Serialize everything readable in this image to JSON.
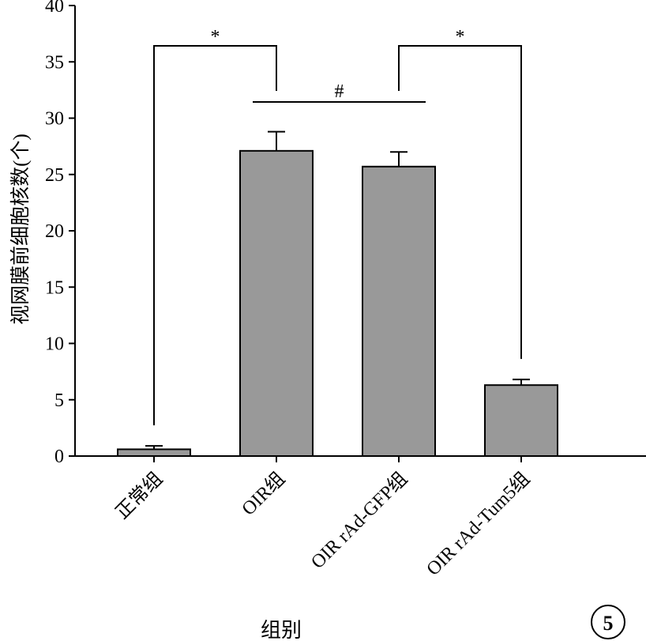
{
  "chart_data": {
    "type": "bar",
    "categories": [
      "正常组",
      "OIR组",
      "OIR rAd-GFP组",
      "OIR rAd-Tum5组"
    ],
    "values": [
      0.6,
      27.1,
      25.7,
      6.3
    ],
    "errors": [
      0.3,
      1.7,
      1.3,
      0.5
    ],
    "ylabel": "视网膜前细胞核数(个)",
    "xlabel": "组别",
    "ylim": [
      0,
      40
    ],
    "yticks": [
      "0",
      "5",
      "10",
      "15",
      "20",
      "25",
      "30",
      "35",
      "40"
    ],
    "significance": [
      {
        "from": 0,
        "to": 1,
        "label": "*"
      },
      {
        "from": 1,
        "to": 2,
        "label": "#"
      },
      {
        "from": 2,
        "to": 3,
        "label": "*"
      }
    ],
    "bar_color": "#999999",
    "grid": false,
    "panel_label": "5"
  }
}
